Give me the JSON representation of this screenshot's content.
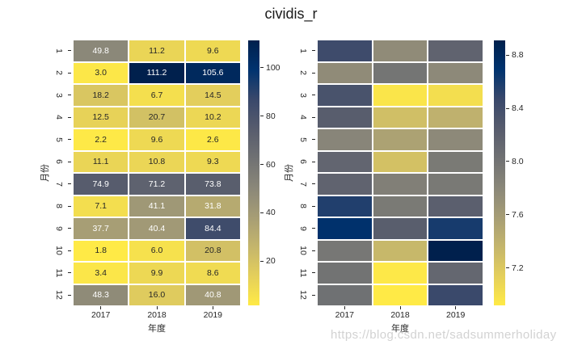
{
  "title": "cividis_r",
  "watermark": "https://blog.csdn.net/sadsummerholiday",
  "colors": {
    "background": "#ffffff",
    "title_color": "#1a1a1a",
    "tick_label_color": "#262626",
    "annotation_dark": "#262626",
    "annotation_light": "#ffffff",
    "watermark_color": "#d2d2d2",
    "cividis_anchors": [
      "#00204D",
      "#00336F",
      "#39486B",
      "#575C6D",
      "#707173",
      "#8A8779",
      "#A69D75",
      "#C4B56C",
      "#E4CF5B",
      "#FFEA46"
    ]
  },
  "chart_data": [
    {
      "type": "heatmap",
      "colormap": "cividis_r",
      "xlabel": "年度",
      "ylabel": "月份",
      "x_categories": [
        "2017",
        "2018",
        "2019"
      ],
      "y_categories": [
        "1",
        "2",
        "3",
        "4",
        "5",
        "6",
        "7",
        "8",
        "9",
        "10",
        "11",
        "12"
      ],
      "annotated": true,
      "values": [
        [
          49.8,
          11.2,
          9.6
        ],
        [
          3.0,
          111.2,
          105.6
        ],
        [
          18.2,
          6.7,
          14.5
        ],
        [
          12.5,
          20.7,
          10.2
        ],
        [
          2.2,
          9.6,
          2.6
        ],
        [
          11.1,
          10.8,
          9.3
        ],
        [
          74.9,
          71.2,
          73.8
        ],
        [
          7.1,
          41.1,
          31.8
        ],
        [
          37.7,
          40.4,
          84.4
        ],
        [
          1.8,
          6.0,
          20.8
        ],
        [
          3.4,
          9.9,
          8.6
        ],
        [
          48.3,
          16.0,
          40.8
        ]
      ],
      "vmin": 1.8,
      "vmax": 111.2,
      "colorbar_ticks": [
        "100",
        "80",
        "60",
        "40",
        "20"
      ]
    },
    {
      "type": "heatmap",
      "colormap": "cividis_r",
      "xlabel": "年度",
      "ylabel": "月份",
      "x_categories": [
        "2017",
        "2018",
        "2019"
      ],
      "y_categories": [
        "1",
        "2",
        "3",
        "4",
        "5",
        "6",
        "7",
        "8",
        "9",
        "10",
        "11",
        "12"
      ],
      "annotated": false,
      "values": [
        [
          8.43,
          7.76,
          8.17
        ],
        [
          7.76,
          7.99,
          7.78
        ],
        [
          8.35,
          6.96,
          7.02
        ],
        [
          8.24,
          7.28,
          7.4
        ],
        [
          7.82,
          7.54,
          7.78
        ],
        [
          8.15,
          7.26,
          7.94
        ],
        [
          8.17,
          7.88,
          7.95
        ],
        [
          8.56,
          7.94,
          8.21
        ],
        [
          8.71,
          8.23,
          8.6
        ],
        [
          7.97,
          7.34,
          8.91
        ],
        [
          8.01,
          6.94,
          8.13
        ],
        [
          8.03,
          6.92,
          8.46
        ]
      ],
      "vmin": 6.92,
      "vmax": 8.91,
      "colorbar_ticks": [
        "8.8",
        "8.4",
        "8.0",
        "7.6",
        "7.2"
      ]
    }
  ]
}
